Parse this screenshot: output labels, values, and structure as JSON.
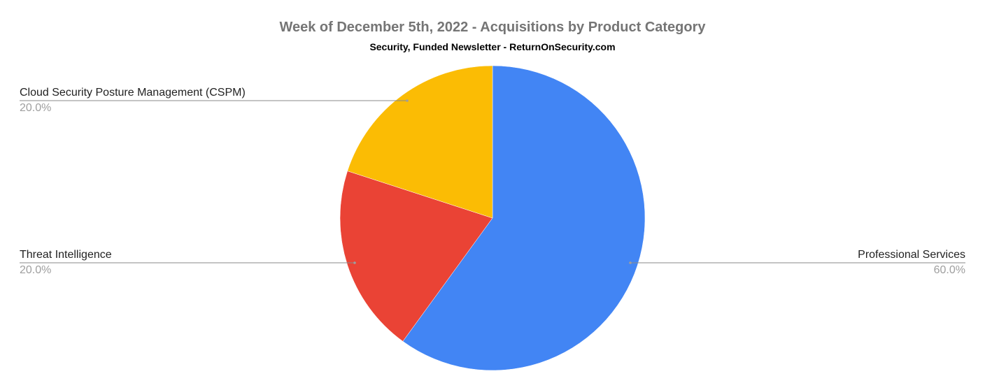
{
  "chart_data": {
    "type": "pie",
    "title": "Week of December 5th, 2022 - Acquisitions by Product Category",
    "subtitle": "Security, Funded Newsletter - ReturnOnSecurity.com",
    "legend": "labels-outside",
    "slices": [
      {
        "label": "Professional Services",
        "value": 60,
        "display": "60.0%",
        "color": "#4285f4"
      },
      {
        "label": "Threat Intelligence",
        "value": 20,
        "display": "20.0%",
        "color": "#ea4335"
      },
      {
        "label": "Cloud Security Posture Management (CSPM)",
        "value": 20,
        "display": "20.0%",
        "color": "#fbbc04"
      }
    ]
  }
}
